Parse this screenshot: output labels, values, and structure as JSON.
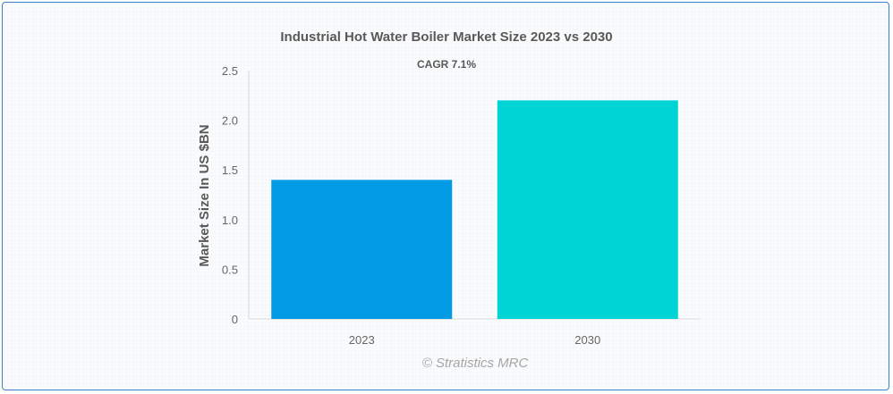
{
  "chart_data": {
    "type": "bar",
    "title": "Industrial Hot Water Boiler Market Size 2023 vs 2030",
    "subtitle": "CAGR 7.1%",
    "categories": [
      "2023",
      "2030"
    ],
    "values": [
      1.4,
      2.2
    ],
    "colors": [
      "#039be5",
      "#00d4d4"
    ],
    "xlabel": "",
    "ylabel": "Market Size In US $BN",
    "ylim": [
      0,
      2.5
    ],
    "yticks": [
      "0",
      "0.5",
      "1.0",
      "1.5",
      "2.0",
      "2.5"
    ],
    "grid": false,
    "legend": "none"
  },
  "watermark": "© Stratistics MRC"
}
